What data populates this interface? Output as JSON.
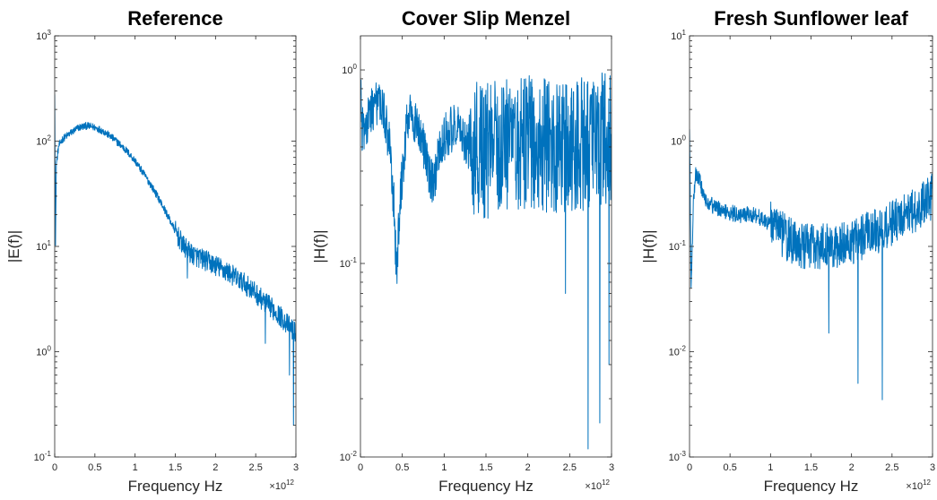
{
  "chart_data": [
    {
      "type": "line",
      "title": "Reference",
      "xlabel": "Frequency Hz",
      "ylabel": "|E(f)|",
      "x_multiplier": {
        "base": "×10",
        "exp": "12"
      },
      "xlim": [
        0,
        3
      ],
      "x_ticks": [
        "0",
        "0.5",
        "1",
        "1.5",
        "2",
        "2.5",
        "3"
      ],
      "y_scale": "log",
      "ylim": [
        0.1,
        1000
      ],
      "y_ticks": [
        {
          "base": "10",
          "exp": "-1"
        },
        {
          "base": "10",
          "exp": "0"
        },
        {
          "base": "10",
          "exp": "1"
        },
        {
          "base": "10",
          "exp": "2"
        },
        {
          "base": "10",
          "exp": "3"
        }
      ],
      "series": [
        {
          "color": "#0072BD",
          "x": [
            0.0,
            0.01,
            0.02,
            0.05,
            0.1,
            0.2,
            0.3,
            0.4,
            0.5,
            0.6,
            0.7,
            0.8,
            0.9,
            1.0,
            1.1,
            1.2,
            1.3,
            1.4,
            1.5,
            1.6,
            1.7,
            1.8,
            1.9,
            2.0,
            2.1,
            2.2,
            2.3,
            2.4,
            2.5,
            2.6,
            2.7,
            2.8,
            2.9,
            3.0
          ],
          "y": [
            300,
            10,
            60,
            90,
            105,
            120,
            135,
            140,
            135,
            125,
            110,
            95,
            80,
            65,
            50,
            38,
            28,
            20,
            14,
            10,
            8.5,
            7.8,
            7.2,
            6.6,
            6.0,
            5.4,
            4.8,
            4.2,
            3.6,
            3.0,
            2.6,
            2.2,
            1.8,
            1.5
          ],
          "noise": 0.1,
          "noise_from_x": 1.5,
          "dips": [
            [
              1.65,
              5
            ],
            [
              2.62,
              1.2
            ],
            [
              2.92,
              0.6
            ],
            [
              2.97,
              0.2
            ]
          ]
        }
      ]
    },
    {
      "type": "line",
      "title": "Cover Slip Menzel",
      "xlabel": "Frequency Hz",
      "ylabel": "|H(f)|",
      "x_multiplier": {
        "base": "×10",
        "exp": "12"
      },
      "xlim": [
        0,
        3
      ],
      "x_ticks": [
        "0",
        "0.5",
        "1",
        "1.5",
        "2",
        "2.5",
        "3"
      ],
      "y_scale": "log",
      "ylim": [
        0.01,
        1.5
      ],
      "y_ticks": [
        {
          "base": "10",
          "exp": "-2"
        },
        {
          "base": "10",
          "exp": "-1"
        },
        {
          "base": "10",
          "exp": "0"
        }
      ],
      "series": [
        {
          "color": "#0072BD",
          "x": [
            0.0,
            0.02,
            0.05,
            0.1,
            0.2,
            0.3,
            0.35,
            0.4,
            0.43,
            0.47,
            0.55,
            0.6,
            0.65,
            0.75,
            0.82,
            0.87,
            0.93,
            1.0,
            1.1,
            1.2,
            1.3,
            1.5,
            1.7,
            2.0,
            2.3,
            2.6,
            2.8,
            3.0
          ],
          "y": [
            1.0,
            0.5,
            0.45,
            0.6,
            0.68,
            0.55,
            0.4,
            0.2,
            0.09,
            0.2,
            0.5,
            0.6,
            0.55,
            0.4,
            0.3,
            0.25,
            0.35,
            0.45,
            0.5,
            0.48,
            0.4,
            0.38,
            0.4,
            0.42,
            0.4,
            0.4,
            0.45,
            0.45
          ],
          "noise": 0.35,
          "noise_from_x": 1.3,
          "dips": [
            [
              2.45,
              0.07
            ],
            [
              2.72,
              0.011
            ],
            [
              2.86,
              0.015
            ],
            [
              2.97,
              0.03
            ]
          ]
        }
      ]
    },
    {
      "type": "line",
      "title": "Fresh Sunflower leaf",
      "xlabel": "Frequency Hz",
      "ylabel": "|H(f)|",
      "x_multiplier": {
        "base": "×10",
        "exp": "12"
      },
      "xlim": [
        0,
        3
      ],
      "x_ticks": [
        "0",
        "0.5",
        "1",
        "1.5",
        "2",
        "2.5",
        "3"
      ],
      "y_scale": "log",
      "ylim": [
        0.001,
        10
      ],
      "y_ticks": [
        {
          "base": "10",
          "exp": "-3"
        },
        {
          "base": "10",
          "exp": "-2"
        },
        {
          "base": "10",
          "exp": "-1"
        },
        {
          "base": "10",
          "exp": "0"
        },
        {
          "base": "10",
          "exp": "1"
        }
      ],
      "series": [
        {
          "color": "#0072BD",
          "x": [
            0.0,
            0.02,
            0.05,
            0.08,
            0.12,
            0.15,
            0.2,
            0.3,
            0.4,
            0.5,
            0.6,
            0.7,
            0.8,
            0.9,
            1.0,
            1.1,
            1.2,
            1.3,
            1.4,
            1.5,
            1.6,
            1.8,
            2.0,
            2.2,
            2.4,
            2.6,
            2.8,
            3.0
          ],
          "y": [
            1.5,
            0.04,
            0.3,
            0.5,
            0.45,
            0.35,
            0.28,
            0.24,
            0.22,
            0.21,
            0.2,
            0.2,
            0.2,
            0.18,
            0.16,
            0.14,
            0.12,
            0.11,
            0.1,
            0.1,
            0.1,
            0.1,
            0.11,
            0.13,
            0.15,
            0.18,
            0.22,
            0.3
          ],
          "noise": 0.22,
          "noise_from_x": 1.0,
          "dips": [
            [
              2.08,
              0.005
            ],
            [
              2.38,
              0.0035
            ],
            [
              1.72,
              0.015
            ]
          ]
        }
      ]
    }
  ]
}
